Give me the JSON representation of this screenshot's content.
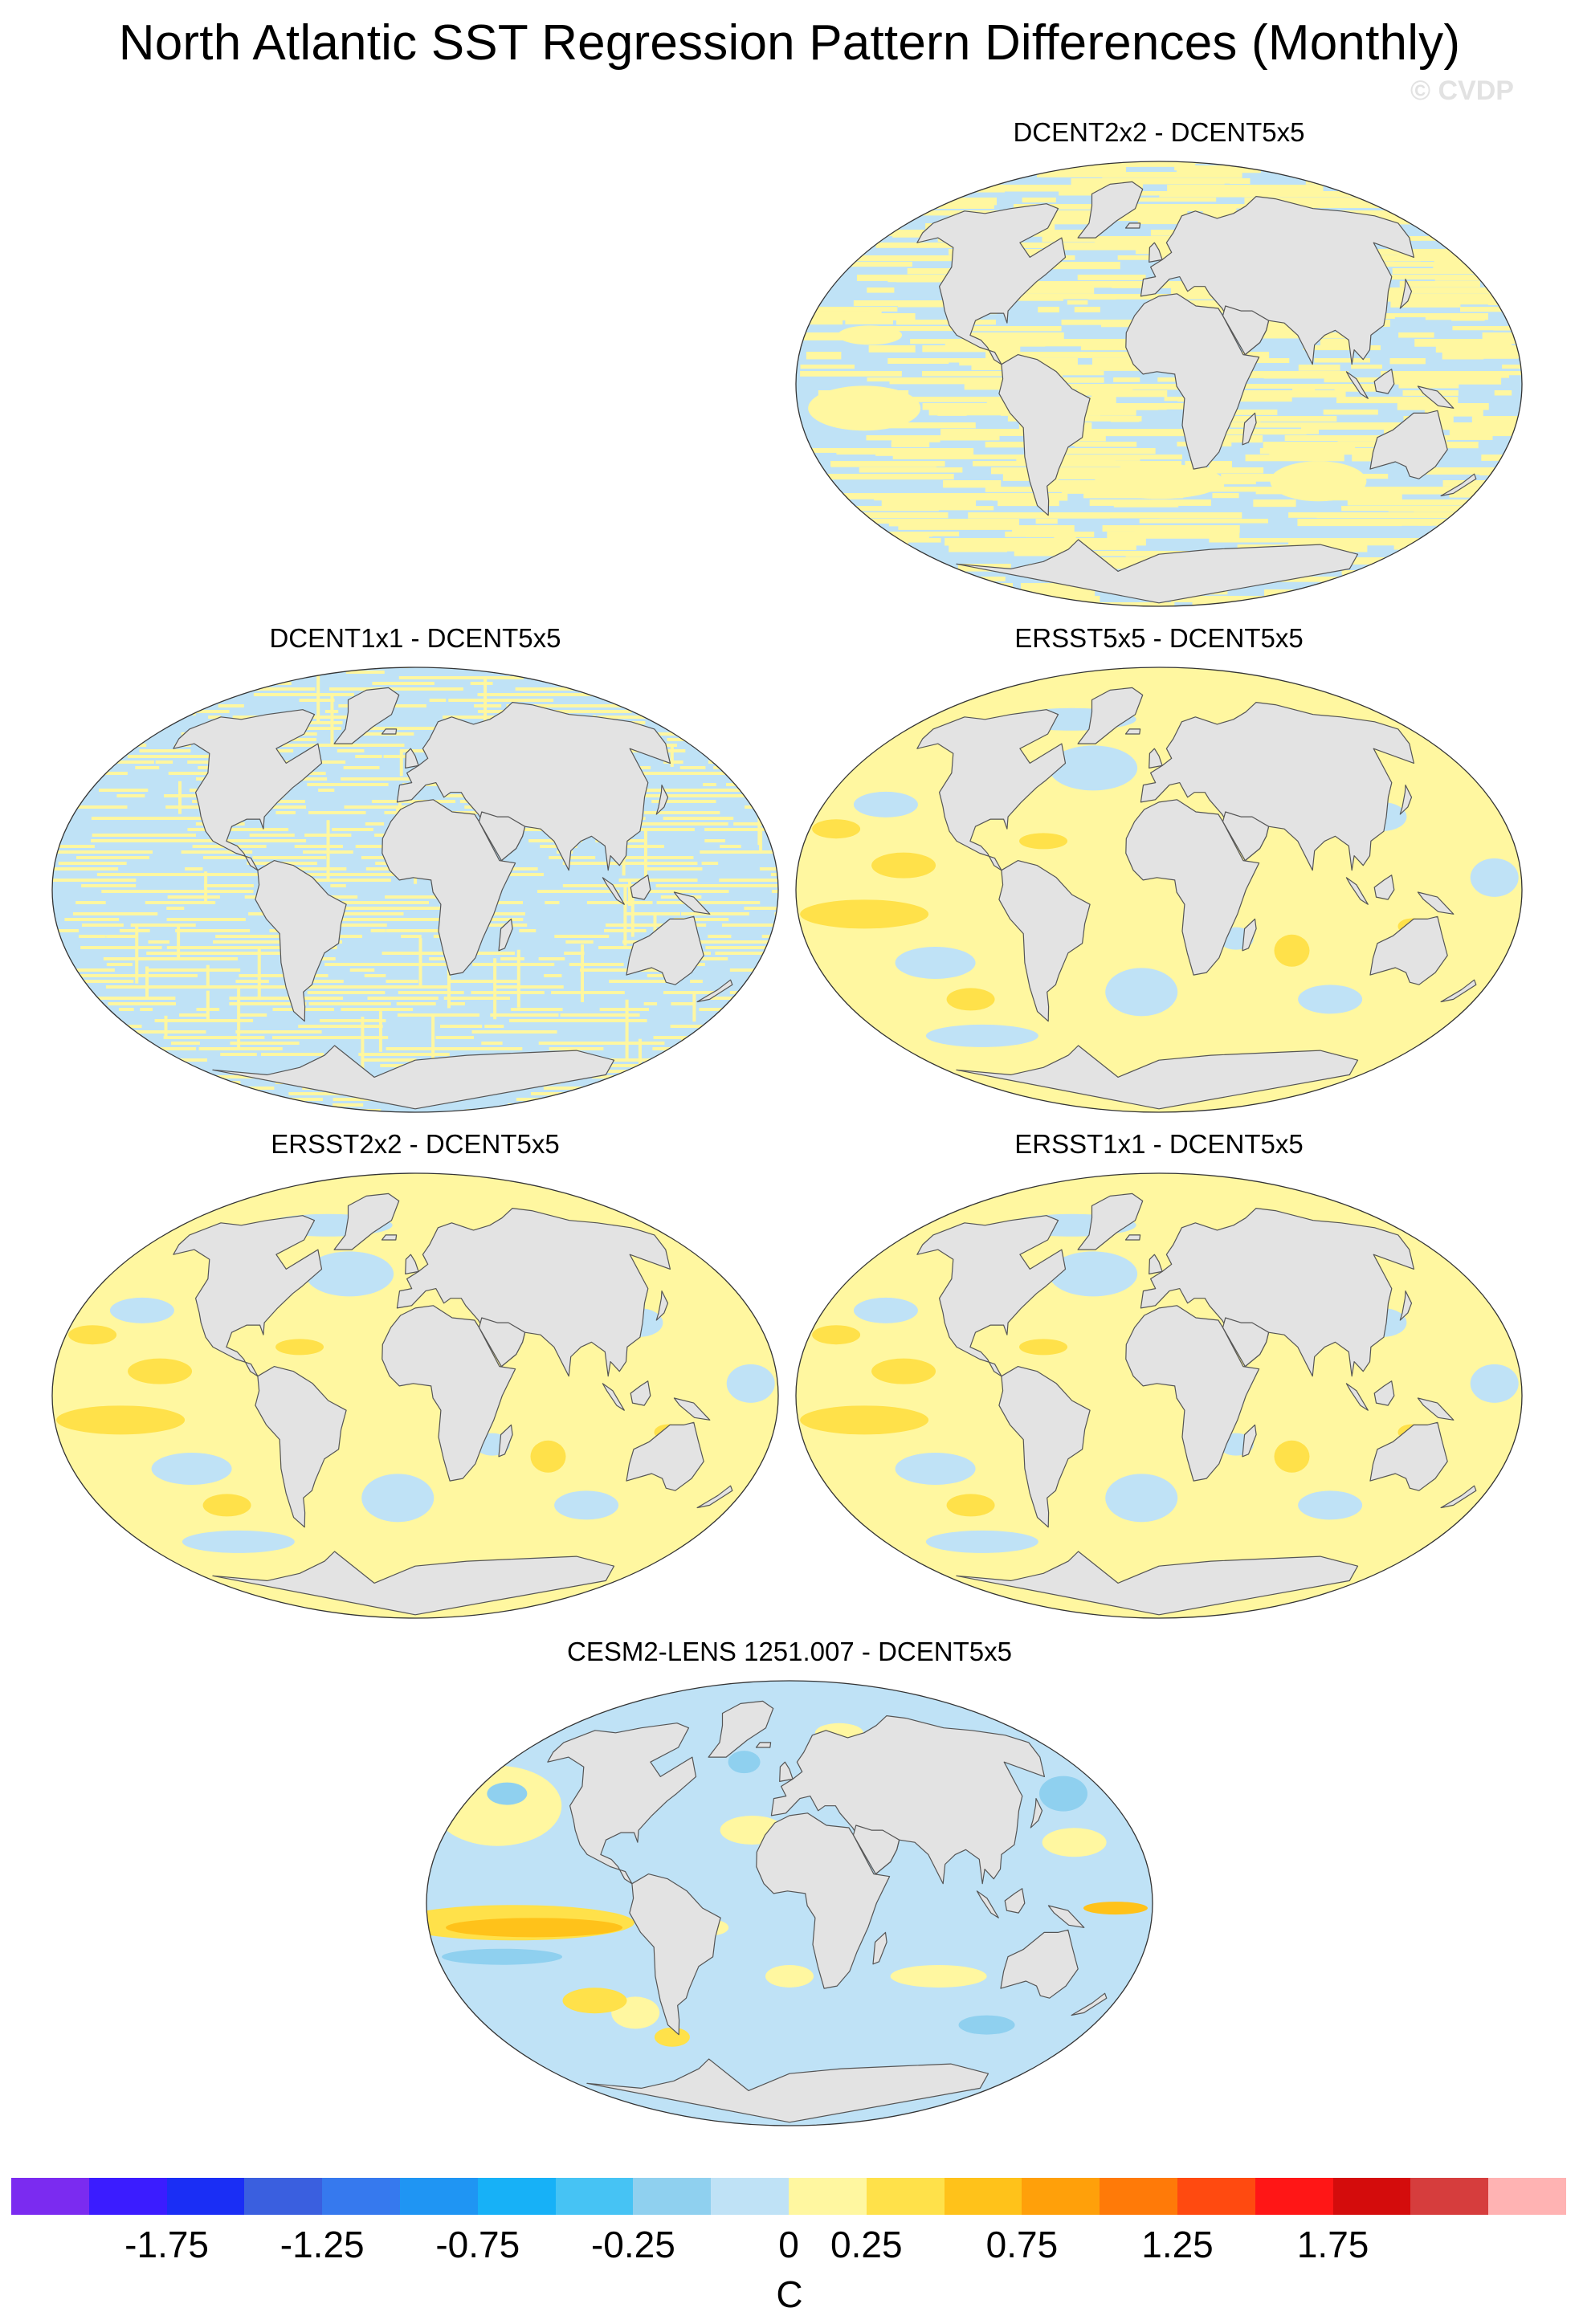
{
  "title": "North Atlantic SST Regression Pattern Differences (Monthly)",
  "watermark": "© CVDP",
  "panels": [
    {
      "title": "DCENT2x2 - DCENT5x5",
      "pattern": "stripe-noise"
    },
    {
      "title": "DCENT1x1 - DCENT5x5",
      "pattern": "grid-noise"
    },
    {
      "title": "ERSST5x5 - DCENT5x5",
      "pattern": "smooth-warm"
    },
    {
      "title": "ERSST2x2 - DCENT5x5",
      "pattern": "smooth-warm"
    },
    {
      "title": "ERSST1x1 - DCENT5x5",
      "pattern": "smooth-warm"
    },
    {
      "title": "CESM2-LENS 1251.007 - DCENT5x5",
      "pattern": "model"
    }
  ],
  "colorbar": {
    "unit": "C",
    "tick_labels": [
      "-1.75",
      "-1.25",
      "-0.75",
      "-0.25",
      "0",
      "0.25",
      "0.75",
      "1.25",
      "1.75"
    ],
    "colors": [
      "#7b2bf0",
      "#3b1cff",
      "#1a2ef5",
      "#3a5fdf",
      "#3679ee",
      "#1f95f3",
      "#17b1f7",
      "#46c3f4",
      "#8fd0ef",
      "#bfe2f6",
      "#fff7a0",
      "#ffe14a",
      "#ffc21a",
      "#ffa00a",
      "#ff7a08",
      "#ff4a10",
      "#ff1616",
      "#d40c0c",
      "#d63d3d",
      "#ffb3b3"
    ]
  }
}
